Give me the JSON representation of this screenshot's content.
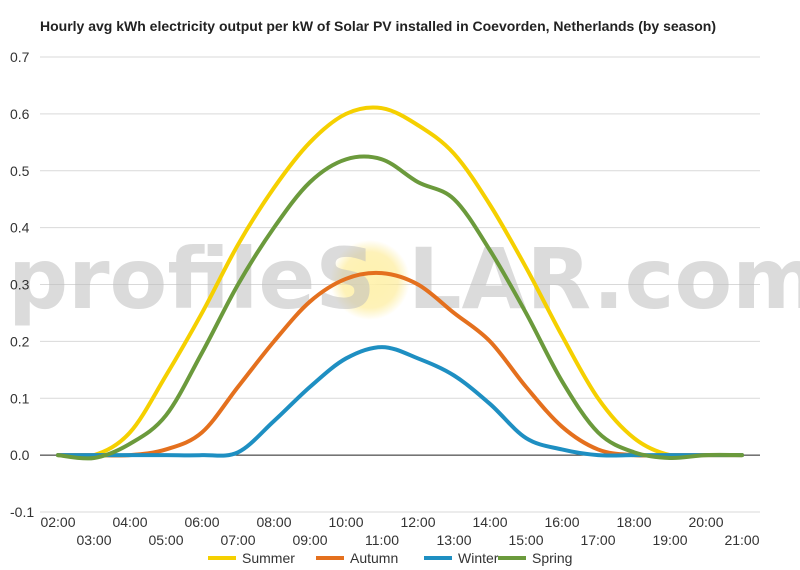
{
  "watermark": {
    "left": "profileS",
    "right": "LAR.com"
  },
  "chart_data": {
    "type": "line",
    "title": "Hourly avg kWh electricity output per kW of Solar PV installed in Coevorden, Netherlands (by season)",
    "xlabel": "",
    "ylabel": "",
    "ylim": [
      -0.1,
      0.7
    ],
    "yticks": [
      -0.1,
      0.0,
      0.1,
      0.2,
      0.3,
      0.4,
      0.5,
      0.6,
      0.7
    ],
    "xticks": [
      "02:00",
      "03:00",
      "04:00",
      "05:00",
      "06:00",
      "07:00",
      "08:00",
      "09:00",
      "10:00",
      "11:00",
      "12:00",
      "13:00",
      "14:00",
      "15:00",
      "16:00",
      "17:00",
      "18:00",
      "19:00",
      "20:00",
      "21:00"
    ],
    "x": [
      "02:00",
      "03:00",
      "04:00",
      "05:00",
      "06:00",
      "07:00",
      "08:00",
      "09:00",
      "10:00",
      "11:00",
      "12:00",
      "13:00",
      "14:00",
      "15:00",
      "16:00",
      "17:00",
      "18:00",
      "19:00",
      "20:00",
      "21:00"
    ],
    "grid": true,
    "legend": "bottom",
    "series": [
      {
        "name": "Summer",
        "color": "#f5d000",
        "values": [
          0.0,
          0.0,
          0.04,
          0.14,
          0.25,
          0.37,
          0.47,
          0.55,
          0.6,
          0.61,
          0.58,
          0.53,
          0.44,
          0.33,
          0.21,
          0.1,
          0.03,
          0.0,
          0.0,
          0.0
        ]
      },
      {
        "name": "Autumn",
        "color": "#e4701e",
        "values": [
          0.0,
          0.0,
          0.0,
          0.01,
          0.04,
          0.12,
          0.2,
          0.27,
          0.31,
          0.32,
          0.3,
          0.25,
          0.2,
          0.12,
          0.05,
          0.01,
          0.0,
          0.0,
          0.0,
          0.0
        ]
      },
      {
        "name": "Winter",
        "color": "#1e8fc2",
        "values": [
          0.0,
          0.0,
          0.0,
          0.0,
          0.0,
          0.005,
          0.06,
          0.12,
          0.17,
          0.19,
          0.17,
          0.14,
          0.09,
          0.03,
          0.01,
          0.0,
          0.0,
          0.0,
          0.0,
          0.0
        ]
      },
      {
        "name": "Spring",
        "color": "#6b9a3c",
        "values": [
          0.0,
          -0.005,
          0.02,
          0.07,
          0.18,
          0.3,
          0.4,
          0.48,
          0.52,
          0.52,
          0.48,
          0.45,
          0.36,
          0.25,
          0.13,
          0.04,
          0.005,
          -0.005,
          0.0,
          0.0
        ]
      }
    ]
  }
}
